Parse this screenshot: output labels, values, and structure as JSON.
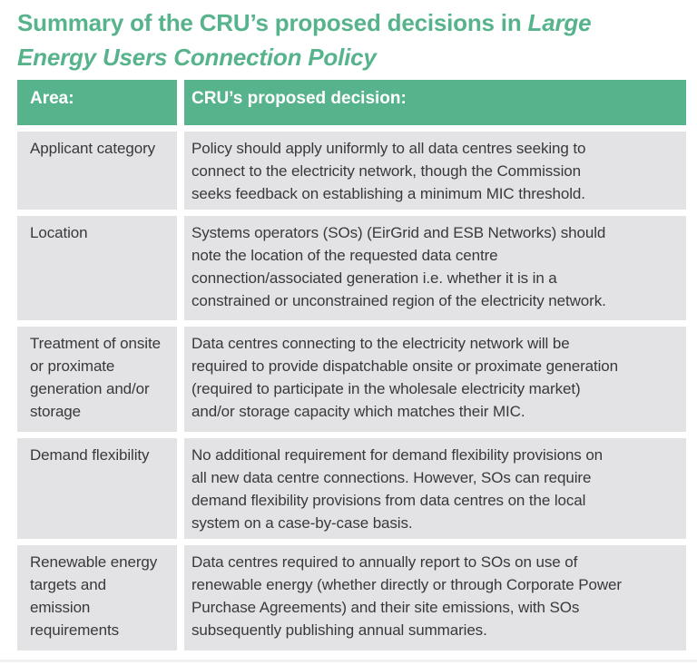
{
  "colors": {
    "brand_green": "#56b38b",
    "header_text": "#ffffff",
    "cell_background": "#e3e3e5",
    "body_text": "#39393b"
  },
  "title": {
    "line1_regular": "Summary of the CRU’s proposed decisions in ",
    "line1_italic": "Large",
    "line2_italic": "Energy Users Connection Policy"
  },
  "table": {
    "header": {
      "area": "Area:",
      "decision": "CRU’s proposed decision:"
    },
    "rows": [
      {
        "area": [
          "Applicant category"
        ],
        "decision": [
          "Policy should apply uniformly to all data centres seeking to",
          "connect to the electricity network, though the Commission",
          "seeks feedback on establishing a minimum MIC threshold."
        ]
      },
      {
        "area": [
          "Location"
        ],
        "decision": [
          "Systems operators (SOs) (EirGrid and ESB Networks) should",
          "note the location of the requested data centre",
          "connection/associated generation i.e. whether it is in a",
          "constrained or unconstrained region of the electricity network."
        ]
      },
      {
        "area": [
          "Treatment of onsite",
          "or proximate",
          "generation and/or",
          "storage"
        ],
        "decision": [
          "Data centres connecting to the electricity network will be",
          "required to provide dispatchable onsite or proximate generation",
          "(required to participate in the wholesale electricity market)",
          "and/or storage capacity which matches their MIC."
        ]
      },
      {
        "area": [
          "Demand flexibility"
        ],
        "decision": [
          "No additional requirement for demand flexibility provisions on",
          "all new data centre connections. However, SOs can require",
          "demand flexibility provisions from data centres on the local",
          "system on a case-by-case basis."
        ]
      },
      {
        "area": [
          "Renewable energy",
          "targets and",
          "emission",
          "requirements"
        ],
        "decision": [
          "Data centres required to annually report to SOs on use of",
          "renewable energy (whether directly or through Corporate Power",
          "Purchase Agreements) and their site emissions, with SOs",
          "subsequently publishing annual summaries."
        ]
      }
    ]
  }
}
